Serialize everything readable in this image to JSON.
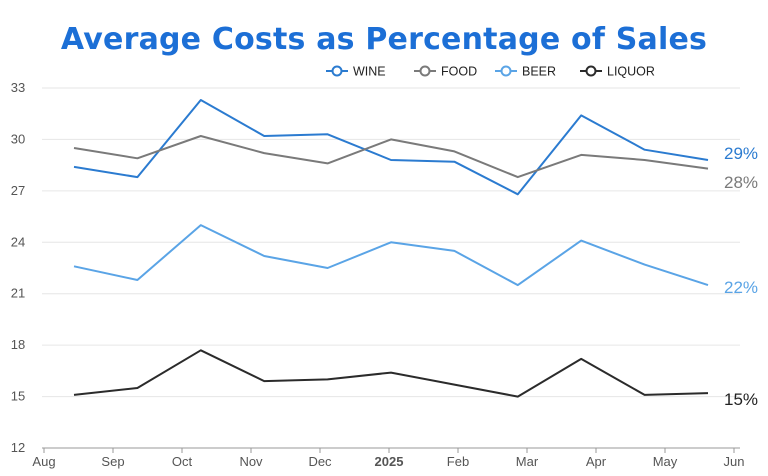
{
  "chart_data": {
    "type": "line",
    "title": "Average Costs as Percentage of Sales",
    "xlabel": "",
    "ylabel": "",
    "x": [
      "Aug",
      "Sep",
      "Oct",
      "Nov",
      "Dec",
      "2025",
      "Feb",
      "Mar",
      "Apr",
      "May",
      "Jun"
    ],
    "ylim": [
      12,
      33
    ],
    "yticks": [
      12,
      15,
      18,
      21,
      24,
      27,
      30,
      33
    ],
    "grid": true,
    "legend_position": "top-right",
    "series": [
      {
        "name": "WINE",
        "color": "#2b7bd0",
        "values": [
          28.4,
          27.8,
          32.3,
          30.2,
          30.3,
          28.8,
          28.7,
          26.8,
          31.4,
          29.4,
          28.8
        ],
        "end_label": "29%"
      },
      {
        "name": "FOOD",
        "color": "#7a7a7a",
        "values": [
          29.5,
          28.9,
          30.2,
          29.2,
          28.6,
          30.0,
          29.3,
          27.8,
          29.1,
          28.8,
          28.3
        ],
        "end_label": "28%"
      },
      {
        "name": "BEER",
        "color": "#5aa4e6",
        "values": [
          22.6,
          21.8,
          25.0,
          23.2,
          22.5,
          24.0,
          23.5,
          21.5,
          24.1,
          22.7,
          21.5
        ],
        "end_label": "22%"
      },
      {
        "name": "LIQUOR",
        "color": "#2b2b2b",
        "values": [
          15.1,
          15.5,
          17.7,
          15.9,
          16.0,
          16.4,
          15.7,
          15.0,
          17.2,
          15.1,
          15.2
        ],
        "end_label": "15%"
      }
    ]
  },
  "colors": {
    "title": "#1c6fd6",
    "grid": "#e6e6e6",
    "axis": "#999999"
  }
}
